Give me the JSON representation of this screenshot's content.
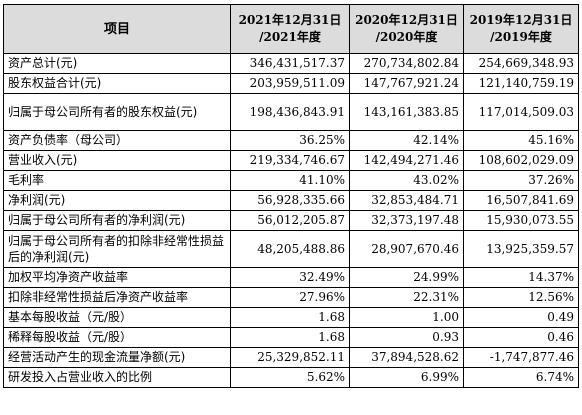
{
  "table": {
    "headers": [
      {
        "line1": "项目",
        "line2": ""
      },
      {
        "line1": "2021年12月31日",
        "line2": "/2021年度"
      },
      {
        "line1": "2020年12月31日",
        "line2": "/2020年度"
      },
      {
        "line1": "2019年12月31日",
        "line2": "/2019年度"
      }
    ],
    "rows": [
      {
        "label": "资产总计(元)",
        "values": [
          "346,431,517.37",
          "270,734,802.84",
          "254,669,348.93"
        ]
      },
      {
        "label": "股东权益合计(元)",
        "values": [
          "203,959,511.09",
          "147,767,921.24",
          "121,140,759.19"
        ]
      },
      {
        "label": "归属于母公司所有者的股东权益(元)",
        "values": [
          "198,436,843.91",
          "143,161,383.85",
          "117,014,509.03"
        ]
      },
      {
        "label": "资产负债率（母公司）",
        "values": [
          "36.25%",
          "42.14%",
          "45.16%"
        ]
      },
      {
        "label": "营业收入(元)",
        "values": [
          "219,334,746.67",
          "142,494,271.46",
          "108,602,029.09"
        ]
      },
      {
        "label": "毛利率",
        "values": [
          "41.10%",
          "43.02%",
          "37.26%"
        ]
      },
      {
        "label": "净利润(元)",
        "values": [
          "56,928,335.66",
          "32,853,484.71",
          "16,507,841.69"
        ]
      },
      {
        "label": "归属于母公司所有者的净利润(元)",
        "values": [
          "56,012,205.87",
          "32,373,197.48",
          "15,930,073.55"
        ]
      },
      {
        "label": "归属于母公司所有者的扣除非经常性损益后的净利润(元)",
        "values": [
          "48,205,488.86",
          "28,907,670.46",
          "13,925,359.57"
        ]
      },
      {
        "label": "加权平均净资产收益率",
        "values": [
          "32.49%",
          "24.99%",
          "14.37%"
        ]
      },
      {
        "label": "扣除非经常性损益后净资产收益率",
        "values": [
          "27.96%",
          "22.31%",
          "12.56%"
        ]
      },
      {
        "label": "基本每股收益（元/股）",
        "values": [
          "1.68",
          "1.00",
          "0.49"
        ]
      },
      {
        "label": "稀释每股收益（元/股）",
        "values": [
          "1.68",
          "0.93",
          "0.46"
        ]
      },
      {
        "label": "经营活动产生的现金流量净额(元)",
        "values": [
          "25,329,852.11",
          "37,894,528.62",
          "-1,747,877.46"
        ]
      },
      {
        "label": "研发投入占营业收入的比例",
        "values": [
          "5.62%",
          "6.99%",
          "6.74%"
        ]
      }
    ]
  },
  "colors": {
    "header_bg": "#dcdcdc",
    "border": "#000000"
  }
}
